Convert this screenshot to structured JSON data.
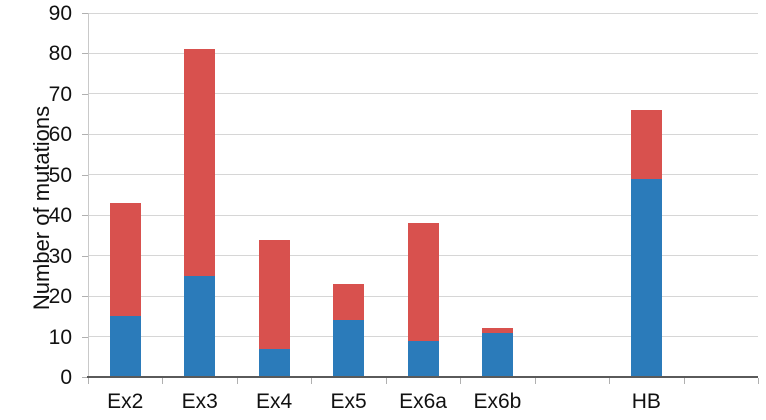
{
  "figure": {
    "background": "#ffffff",
    "plot": {
      "gridline_color": "#d6d6d6",
      "axis_line_color": "#5a5a5a",
      "grid": true,
      "legend": "none"
    }
  },
  "chart_data": {
    "type": "bar",
    "subtype": "stacked",
    "title": "",
    "xlabel": "",
    "ylabel": "Number of mutations",
    "ylim": [
      0,
      90
    ],
    "yticks": [
      0,
      10,
      20,
      30,
      40,
      50,
      60,
      70,
      80,
      90
    ],
    "categories": [
      "Ex2",
      "Ex3",
      "Ex4",
      "Ex5",
      "Ex6a",
      "Ex6b",
      "",
      "HB",
      ""
    ],
    "series": [
      {
        "name": "blue-bottom-segment",
        "color": "#2b7bba",
        "values": [
          15,
          25,
          7,
          14,
          9,
          11,
          null,
          49,
          null
        ]
      },
      {
        "name": "red-top-segment",
        "color": "#d8514e",
        "values": [
          28,
          56,
          27,
          9,
          29,
          1,
          null,
          17,
          null
        ]
      }
    ],
    "totals": [
      43,
      81,
      34,
      23,
      38,
      12,
      null,
      66,
      null
    ]
  }
}
